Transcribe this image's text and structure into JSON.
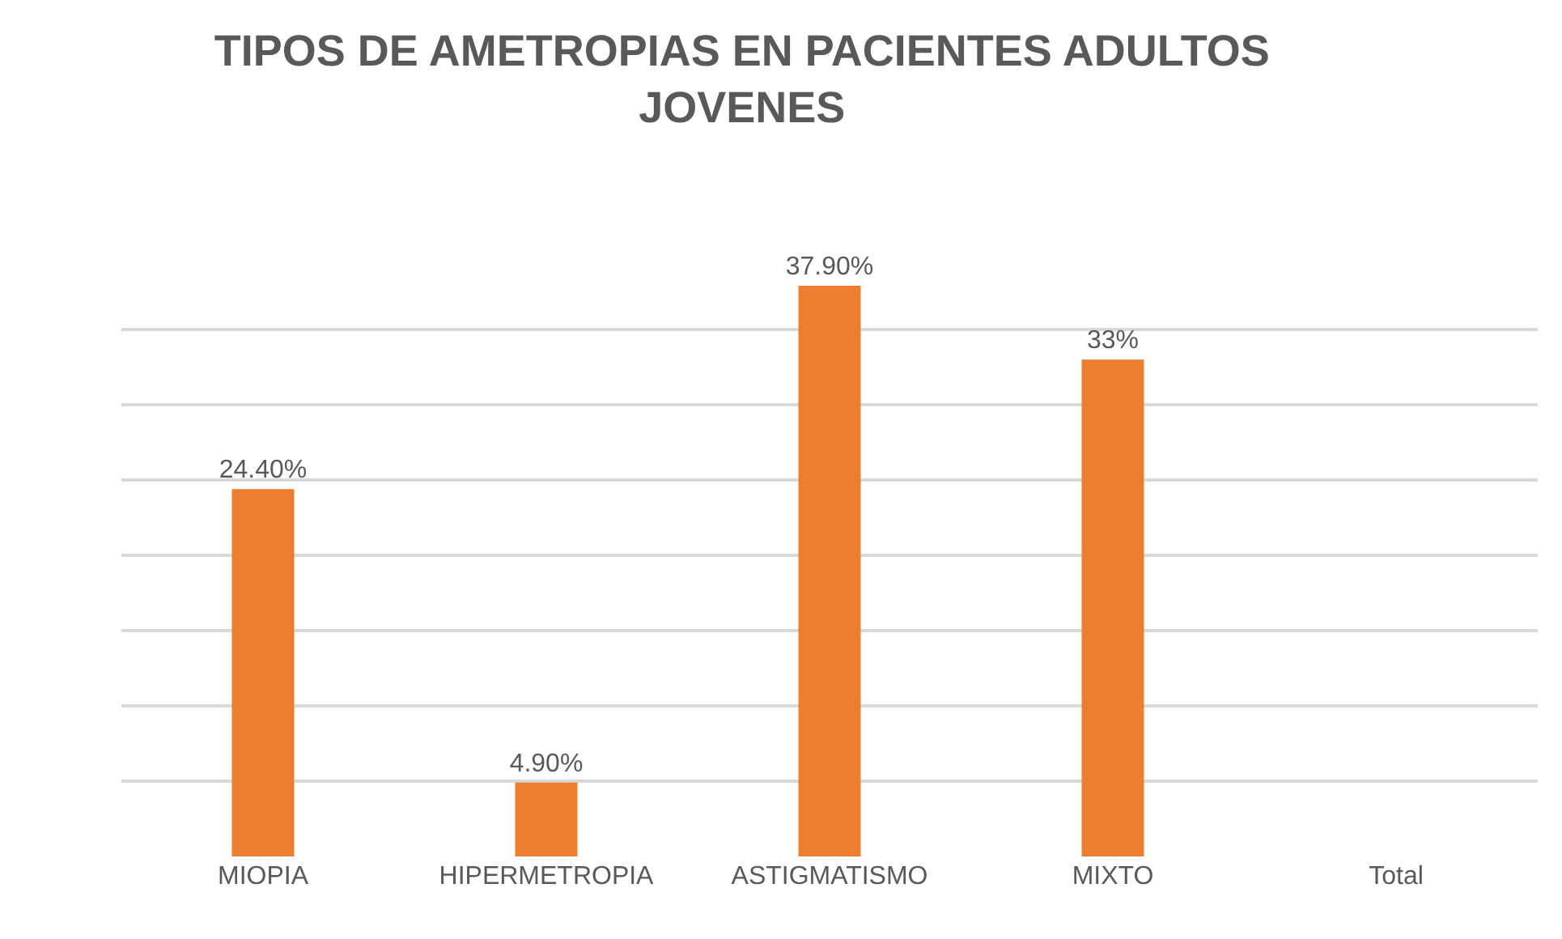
{
  "chart_data": {
    "type": "bar",
    "title": "TIPOS DE AMETROPIAS EN PACIENTES ADULTOS JOVENES",
    "categories": [
      "MIOPIA",
      "HIPERMETROPIA",
      "ASTIGMATISMO",
      "MIXTO",
      "Total"
    ],
    "values": [
      24.4,
      4.9,
      37.9,
      33,
      null
    ],
    "value_labels": [
      "24.40%",
      "4.90%",
      "37.90%",
      "33%",
      null
    ],
    "color": "#ed7d31",
    "grid": "y",
    "tick_labels": "x",
    "legend": false
  }
}
